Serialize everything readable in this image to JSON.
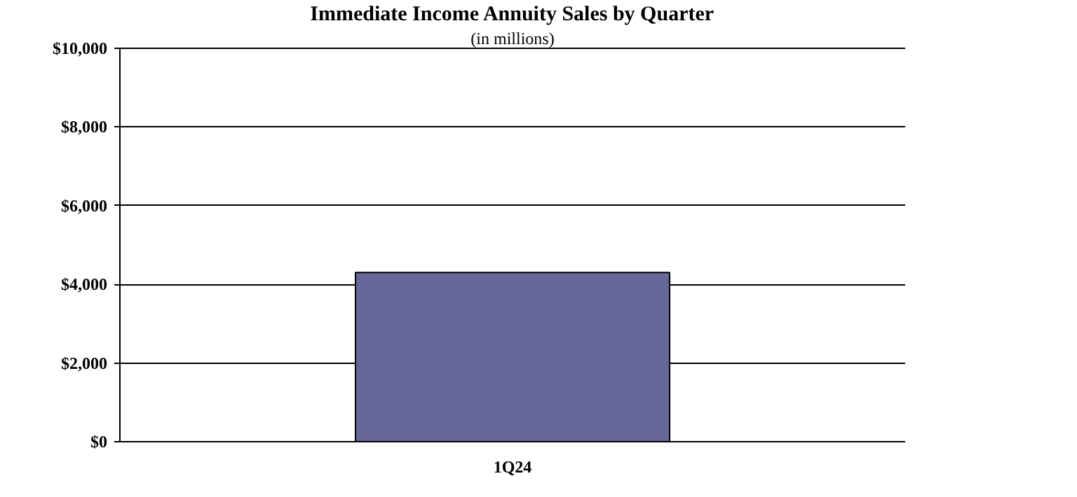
{
  "chart_data": {
    "type": "bar",
    "title": "Immediate Income Annuity Sales by Quarter",
    "subtitle": "(in millions)",
    "categories": [
      "1Q24"
    ],
    "values": [
      4300
    ],
    "color": "#666699",
    "ylim": [
      0,
      10000
    ],
    "yticks": [
      {
        "value": 0,
        "label": "$0"
      },
      {
        "value": 2000,
        "label": "$2,000"
      },
      {
        "value": 4000,
        "label": "$4,000"
      },
      {
        "value": 6000,
        "label": "$6,000"
      },
      {
        "value": 8000,
        "label": "$8,000"
      },
      {
        "value": 10000,
        "label": "$10,000"
      }
    ],
    "grid": "y"
  }
}
